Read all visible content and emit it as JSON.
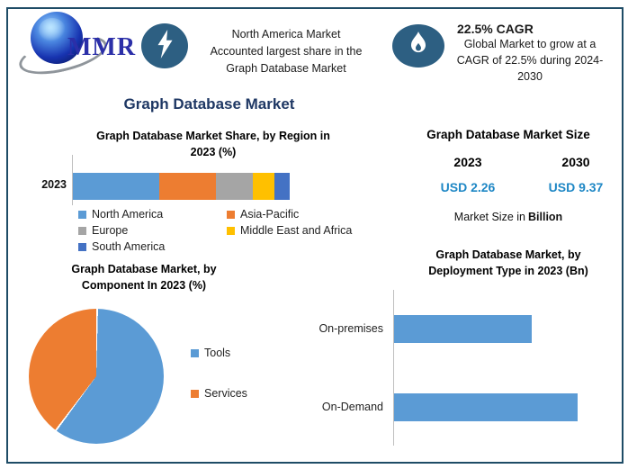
{
  "page": {
    "title": "Graph Database Market"
  },
  "colors": {
    "frame_border": "#1E4C66",
    "accent_navy": "#1F3864",
    "badge_blue": "#2D5F82",
    "value_blue": "#1E87C5",
    "bar_blue": "#5B9BD5",
    "orange": "#ED7D31",
    "gray": "#A5A5A5",
    "yellow": "#FFC000",
    "dark_blue": "#4472C4"
  },
  "header": {
    "logo": {
      "text": "MMR",
      "icon": "globe-icon"
    },
    "highlight_share": {
      "icon": "lightning-bolt-icon",
      "lines": [
        "North America Market",
        "Accounted largest share in the",
        "Graph Database Market"
      ]
    },
    "highlight_cagr": {
      "icon": "flame-icon",
      "heading": "22.5% CAGR",
      "lines": [
        "Global Market to grow at a",
        "CAGR of 22.5% during 2024-",
        "2030"
      ]
    }
  },
  "main_title": "Graph Database Market",
  "market_size": {
    "title": "Graph Database Market Size",
    "year_2023": "2023",
    "year_2030": "2030",
    "value_2023": "USD 2.26",
    "value_2030": "USD 9.37",
    "note_prefix": "Market Size in",
    "note_bold": "Billion"
  },
  "chart_data": [
    {
      "type": "bar",
      "subtype": "stacked-horizontal",
      "title": "Graph Database Market Share, by Region in 2023 (%)",
      "title_lines": [
        "Graph Database Market Share, by Region in",
        "2023 (%)"
      ],
      "unit": "%",
      "categories": [
        "2023"
      ],
      "series": [
        {
          "name": "North America",
          "values": [
            40
          ],
          "color": "#5B9BD5"
        },
        {
          "name": "Asia-Pacific",
          "values": [
            26
          ],
          "color": "#ED7D31"
        },
        {
          "name": "Europe",
          "values": [
            17
          ],
          "color": "#A5A5A5"
        },
        {
          "name": "Middle East and Africa",
          "values": [
            10
          ],
          "color": "#FFC000"
        },
        {
          "name": "South America",
          "values": [
            7
          ],
          "color": "#4472C4"
        }
      ],
      "values_estimated": true,
      "legend_position": "bottom"
    },
    {
      "type": "pie",
      "title": "Graph Database Market, by Component In 2023 (%)",
      "title_lines": [
        "Graph Database Market, by",
        "Component In 2023 (%)"
      ],
      "labels": [
        "Tools",
        "Services"
      ],
      "values": [
        60,
        40
      ],
      "colors": [
        "#5B9BD5",
        "#ED7D31"
      ],
      "values_estimated": true,
      "legend_position": "right"
    },
    {
      "type": "bar",
      "subtype": "horizontal",
      "title": "Graph Database Market, by Deployment Type in 2023 (Bn)",
      "title_lines": [
        "Graph Database Market, by",
        "Deployment Type in 2023 (Bn)"
      ],
      "unit": "Bn",
      "categories": [
        "On-premises",
        "On-Demand"
      ],
      "values": [
        0.97,
        1.29
      ],
      "color": "#5B9BD5",
      "values_estimated": true,
      "axis_labels_hidden": true
    }
  ]
}
